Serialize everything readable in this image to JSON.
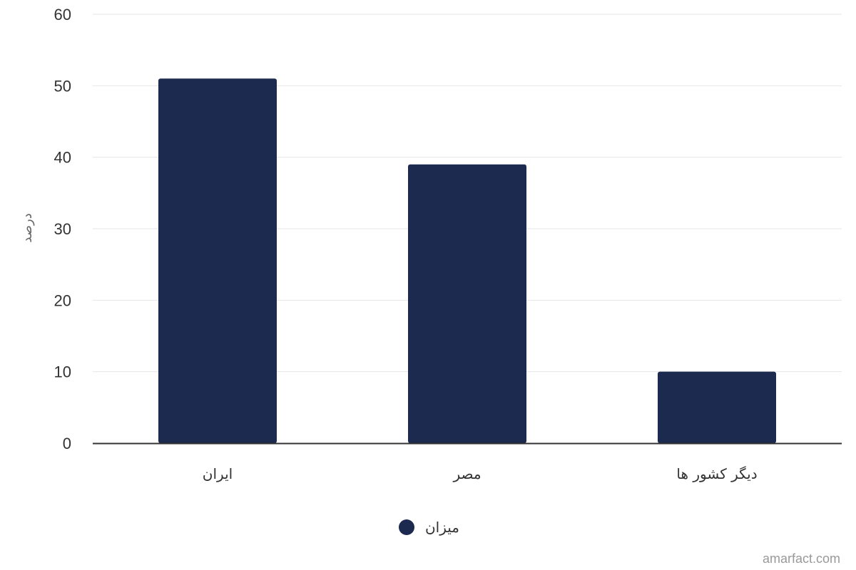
{
  "chart_data": {
    "type": "bar",
    "categories": [
      "ایران",
      "مصر",
      "دیگر کشور ها"
    ],
    "series": [
      {
        "name": "میزان",
        "values": [
          51,
          39,
          10
        ]
      }
    ],
    "title": "",
    "xlabel": "",
    "ylabel": "درصد",
    "ylim": [
      0,
      60
    ],
    "yticks": [
      0,
      10,
      20,
      30,
      40,
      50,
      60
    ],
    "grid": true,
    "legend": "bottom-center"
  },
  "colors": {
    "bar": "#1b2a4e",
    "grid": "#e6e6e6",
    "axis": "#333333"
  },
  "credit": "amarfact.com"
}
